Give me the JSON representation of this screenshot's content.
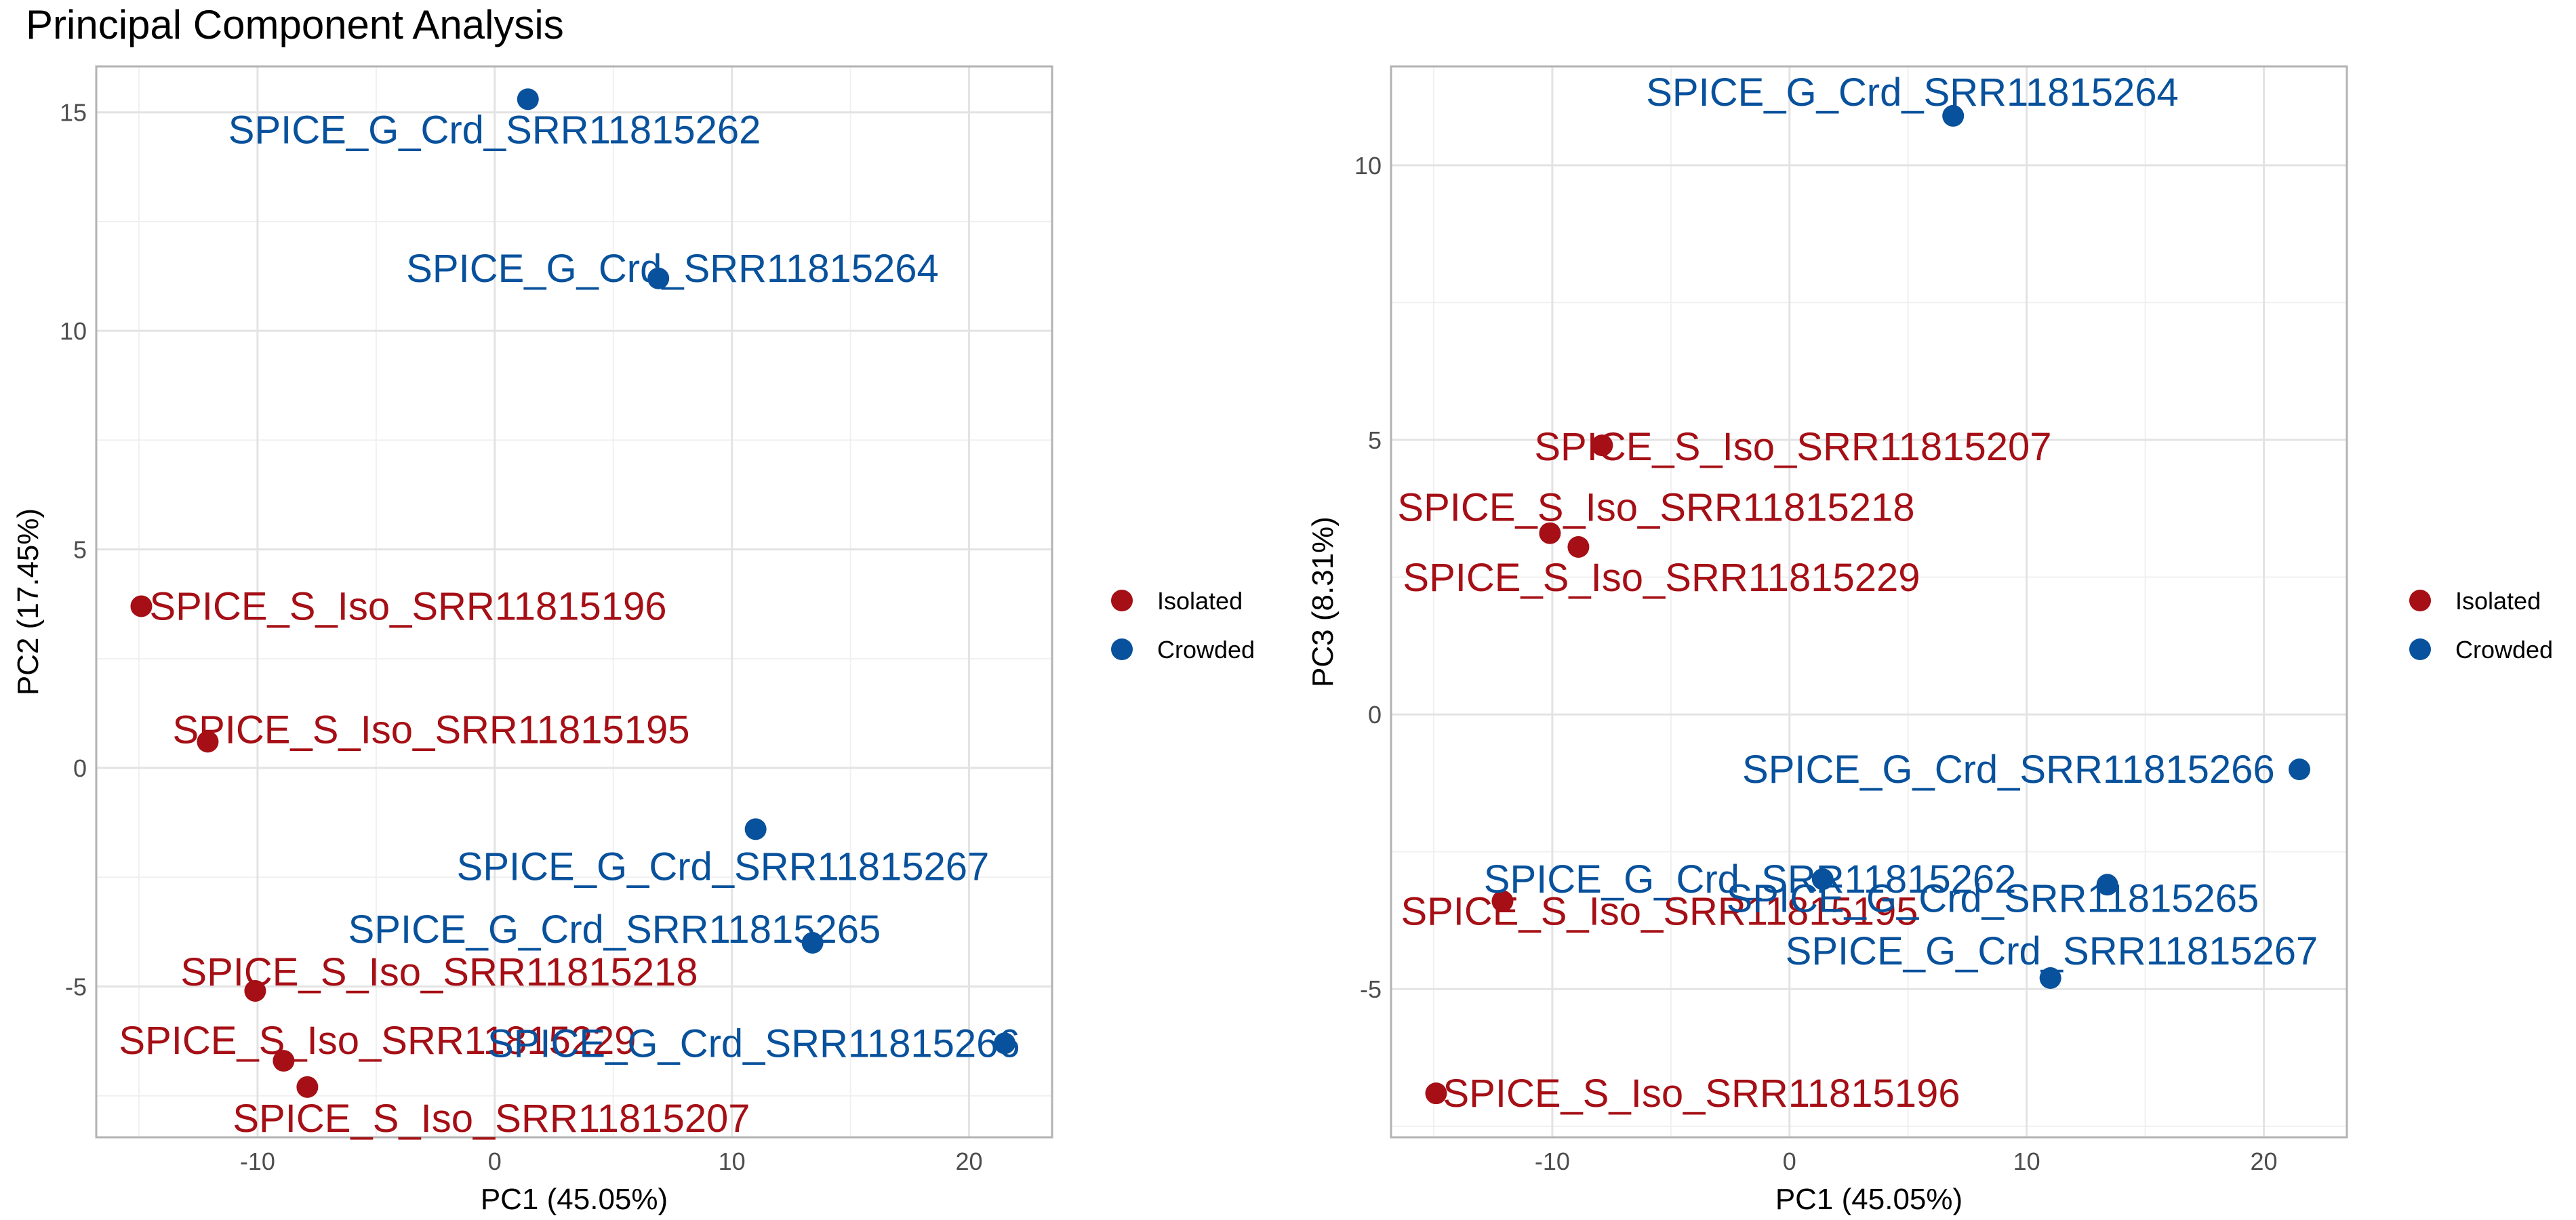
{
  "title": "Principal Component Analysis",
  "colors": {
    "Isolated": "#A50F15",
    "Crowded": "#08519C"
  },
  "chart_data": [
    {
      "type": "scatter",
      "xlabel": "PC1 (45.05%)",
      "ylabel": "PC2 (17.45%)",
      "xlim": [
        -16.8,
        23.5
      ],
      "ylim": [
        -8.45,
        16.05
      ],
      "xticks": [
        -10,
        0,
        10,
        20
      ],
      "yticks": [
        -5,
        0,
        5,
        10,
        15
      ],
      "grid": true,
      "legend": {
        "position": "right",
        "entries": [
          "Isolated",
          "Crowded"
        ]
      },
      "points": [
        {
          "label": "SPICE_G_Crd_SRR11815262",
          "group": "Crowded",
          "x": 1.4,
          "y": 15.3
        },
        {
          "label": "SPICE_G_Crd_SRR11815264",
          "group": "Crowded",
          "x": 6.9,
          "y": 11.2
        },
        {
          "label": "SPICE_S_Iso_SRR11815196",
          "group": "Isolated",
          "x": -14.9,
          "y": 3.7
        },
        {
          "label": "SPICE_S_Iso_SRR11815195",
          "group": "Isolated",
          "x": -12.1,
          "y": 0.6
        },
        {
          "label": "SPICE_G_Crd_SRR11815267",
          "group": "Crowded",
          "x": 11.0,
          "y": -1.4
        },
        {
          "label": "SPICE_G_Crd_SRR11815265",
          "group": "Crowded",
          "x": 13.4,
          "y": -4.0
        },
        {
          "label": "SPICE_S_Iso_SRR11815218",
          "group": "Isolated",
          "x": -10.1,
          "y": -5.1
        },
        {
          "label": "SPICE_S_Iso_SRR11815229",
          "group": "Isolated",
          "x": -8.9,
          "y": -6.7
        },
        {
          "label": "SPICE_G_Crd_SRR11815266",
          "group": "Crowded",
          "x": 21.5,
          "y": -6.3
        },
        {
          "label": "SPICE_S_Iso_SRR11815207",
          "group": "Isolated",
          "x": -7.9,
          "y": -7.3
        }
      ]
    },
    {
      "type": "scatter",
      "xlabel": "PC1 (45.05%)",
      "ylabel": "PC3 (8.31%)",
      "xlim": [
        -16.8,
        23.5
      ],
      "ylim": [
        -7.7,
        11.8
      ],
      "xticks": [
        -10,
        0,
        10,
        20
      ],
      "yticks": [
        -5,
        0,
        5,
        10
      ],
      "grid": true,
      "legend": {
        "position": "right",
        "entries": [
          "Isolated",
          "Crowded"
        ]
      },
      "points": [
        {
          "label": "SPICE_G_Crd_SRR11815264",
          "group": "Crowded",
          "x": 6.9,
          "y": 10.9
        },
        {
          "label": "SPICE_S_Iso_SRR11815207",
          "group": "Isolated",
          "x": -7.9,
          "y": 4.9
        },
        {
          "label": "SPICE_S_Iso_SRR11815218",
          "group": "Isolated",
          "x": -10.1,
          "y": 3.3
        },
        {
          "label": "SPICE_S_Iso_SRR11815229",
          "group": "Isolated",
          "x": -8.9,
          "y": 3.05
        },
        {
          "label": "SPICE_G_Crd_SRR11815266",
          "group": "Crowded",
          "x": 21.5,
          "y": -1.0
        },
        {
          "label": "SPICE_G_Crd_SRR11815262",
          "group": "Crowded",
          "x": 1.4,
          "y": -3.0
        },
        {
          "label": "SPICE_S_Iso_SRR11815195",
          "group": "Isolated",
          "x": -12.1,
          "y": -3.4
        },
        {
          "label": "SPICE_G_Crd_SRR11815265",
          "group": "Crowded",
          "x": 13.4,
          "y": -3.1
        },
        {
          "label": "SPICE_G_Crd_SRR11815267",
          "group": "Crowded",
          "x": 11.0,
          "y": -4.8
        },
        {
          "label": "SPICE_S_Iso_SRR11815196",
          "group": "Isolated",
          "x": -14.9,
          "y": -6.9
        }
      ]
    }
  ]
}
